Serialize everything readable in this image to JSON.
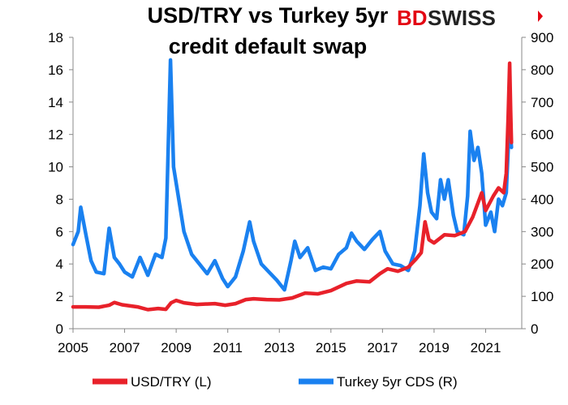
{
  "chart_data": {
    "type": "line",
    "title_lines": [
      "USD/TRY vs Turkey 5yr",
      "credit default swap"
    ],
    "brand": {
      "bd": "BD",
      "swiss": "SWISS",
      "bd_color": "#e30613",
      "swiss_color": "#222222"
    },
    "x_ticks": [
      "2005",
      "2007",
      "2009",
      "2011",
      "2013",
      "2015",
      "2017",
      "2019",
      "2021"
    ],
    "xlim": [
      2005,
      2022.4
    ],
    "y_left": {
      "ticks": [
        "0",
        "2",
        "4",
        "6",
        "8",
        "10",
        "12",
        "14",
        "16",
        "18"
      ],
      "ylim": [
        0,
        18
      ]
    },
    "y_right": {
      "ticks": [
        "0",
        "100",
        "200",
        "300",
        "400",
        "500",
        "600",
        "700",
        "800",
        "900"
      ],
      "ylim": [
        0,
        900
      ]
    },
    "grid": false,
    "legend_position": "bottom",
    "series": [
      {
        "name": "USD/TRY (L)",
        "axis": "left",
        "color": "#e8212a",
        "points": [
          [
            2005.0,
            1.35
          ],
          [
            2005.5,
            1.35
          ],
          [
            2006.0,
            1.33
          ],
          [
            2006.4,
            1.45
          ],
          [
            2006.6,
            1.62
          ],
          [
            2006.9,
            1.48
          ],
          [
            2007.5,
            1.35
          ],
          [
            2007.9,
            1.18
          ],
          [
            2008.3,
            1.25
          ],
          [
            2008.6,
            1.2
          ],
          [
            2008.8,
            1.6
          ],
          [
            2009.0,
            1.75
          ],
          [
            2009.3,
            1.6
          ],
          [
            2009.8,
            1.5
          ],
          [
            2010.5,
            1.55
          ],
          [
            2010.9,
            1.45
          ],
          [
            2011.3,
            1.55
          ],
          [
            2011.7,
            1.8
          ],
          [
            2012.0,
            1.85
          ],
          [
            2012.5,
            1.8
          ],
          [
            2013.0,
            1.78
          ],
          [
            2013.5,
            1.9
          ],
          [
            2014.0,
            2.2
          ],
          [
            2014.5,
            2.15
          ],
          [
            2015.0,
            2.35
          ],
          [
            2015.6,
            2.8
          ],
          [
            2016.0,
            2.95
          ],
          [
            2016.5,
            2.9
          ],
          [
            2016.9,
            3.4
          ],
          [
            2017.2,
            3.7
          ],
          [
            2017.6,
            3.55
          ],
          [
            2018.0,
            3.8
          ],
          [
            2018.3,
            4.3
          ],
          [
            2018.5,
            4.7
          ],
          [
            2018.65,
            6.6
          ],
          [
            2018.8,
            5.5
          ],
          [
            2019.0,
            5.3
          ],
          [
            2019.4,
            5.8
          ],
          [
            2019.8,
            5.75
          ],
          [
            2020.2,
            6.0
          ],
          [
            2020.5,
            6.9
          ],
          [
            2020.85,
            8.4
          ],
          [
            2021.0,
            7.3
          ],
          [
            2021.3,
            8.2
          ],
          [
            2021.5,
            8.7
          ],
          [
            2021.7,
            8.4
          ],
          [
            2021.8,
            9.6
          ],
          [
            2021.87,
            13.0
          ],
          [
            2021.93,
            16.4
          ],
          [
            2021.97,
            13.5
          ],
          [
            2022.0,
            11.5
          ]
        ]
      },
      {
        "name": "Turkey 5yr CDS (R)",
        "axis": "right",
        "color": "#1a81f0",
        "points": [
          [
            2005.0,
            260
          ],
          [
            2005.2,
            300
          ],
          [
            2005.3,
            375
          ],
          [
            2005.5,
            290
          ],
          [
            2005.7,
            210
          ],
          [
            2005.9,
            175
          ],
          [
            2006.2,
            170
          ],
          [
            2006.4,
            310
          ],
          [
            2006.6,
            220
          ],
          [
            2006.8,
            200
          ],
          [
            2007.0,
            175
          ],
          [
            2007.3,
            160
          ],
          [
            2007.6,
            220
          ],
          [
            2007.9,
            165
          ],
          [
            2008.2,
            230
          ],
          [
            2008.45,
            220
          ],
          [
            2008.6,
            280
          ],
          [
            2008.78,
            830
          ],
          [
            2008.9,
            500
          ],
          [
            2009.1,
            400
          ],
          [
            2009.3,
            300
          ],
          [
            2009.6,
            230
          ],
          [
            2009.9,
            200
          ],
          [
            2010.2,
            170
          ],
          [
            2010.5,
            210
          ],
          [
            2010.8,
            155
          ],
          [
            2011.0,
            130
          ],
          [
            2011.3,
            160
          ],
          [
            2011.6,
            240
          ],
          [
            2011.85,
            330
          ],
          [
            2012.0,
            270
          ],
          [
            2012.3,
            200
          ],
          [
            2012.6,
            175
          ],
          [
            2012.9,
            150
          ],
          [
            2013.2,
            120
          ],
          [
            2013.45,
            210
          ],
          [
            2013.6,
            270
          ],
          [
            2013.8,
            220
          ],
          [
            2014.1,
            250
          ],
          [
            2014.4,
            180
          ],
          [
            2014.7,
            190
          ],
          [
            2015.0,
            185
          ],
          [
            2015.3,
            230
          ],
          [
            2015.6,
            250
          ],
          [
            2015.8,
            295
          ],
          [
            2016.0,
            270
          ],
          [
            2016.3,
            245
          ],
          [
            2016.6,
            275
          ],
          [
            2016.9,
            300
          ],
          [
            2017.1,
            240
          ],
          [
            2017.4,
            200
          ],
          [
            2017.7,
            195
          ],
          [
            2018.0,
            180
          ],
          [
            2018.25,
            240
          ],
          [
            2018.45,
            380
          ],
          [
            2018.6,
            540
          ],
          [
            2018.75,
            420
          ],
          [
            2018.9,
            360
          ],
          [
            2019.1,
            340
          ],
          [
            2019.25,
            460
          ],
          [
            2019.4,
            400
          ],
          [
            2019.55,
            460
          ],
          [
            2019.75,
            350
          ],
          [
            2019.9,
            300
          ],
          [
            2020.15,
            290
          ],
          [
            2020.3,
            410
          ],
          [
            2020.4,
            610
          ],
          [
            2020.55,
            520
          ],
          [
            2020.7,
            560
          ],
          [
            2020.85,
            480
          ],
          [
            2021.0,
            320
          ],
          [
            2021.2,
            360
          ],
          [
            2021.35,
            300
          ],
          [
            2021.5,
            400
          ],
          [
            2021.65,
            380
          ],
          [
            2021.8,
            420
          ],
          [
            2021.9,
            600
          ],
          [
            2021.95,
            620
          ],
          [
            2022.0,
            560
          ]
        ]
      }
    ]
  }
}
